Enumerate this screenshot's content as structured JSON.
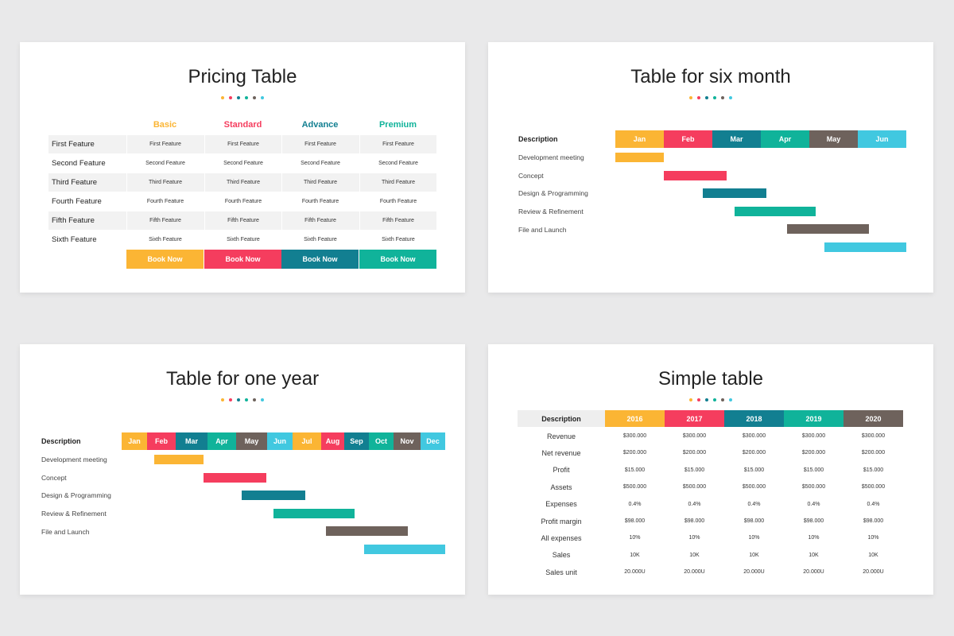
{
  "pricing": {
    "title": "Pricing Table",
    "columns": [
      "Basic",
      "Standard",
      "Advance",
      "Premium"
    ],
    "rows": [
      [
        "First Feature",
        "First Feature",
        "First Feature",
        "First Feature",
        "First Feature"
      ],
      [
        "Second Feature",
        "Second Feature",
        "Second Feature",
        "Second Feature",
        "Second Feature"
      ],
      [
        "Third Feature",
        "Third Feature",
        "Third Feature",
        "Third Feature",
        "Third Feature"
      ],
      [
        "Fourth Feature",
        "Fourth Feature",
        "Fourth Feature",
        "Fourth Feature",
        "Fourth Feature"
      ],
      [
        "Fifth Feature",
        "Fifth Feature",
        "Fifth Feature",
        "Fifth Feature",
        "Fifth Feature"
      ],
      [
        "Sixth Feature",
        "Sixth Feature",
        "Sixth Feature",
        "Sixth Feature",
        "Sixth Feature"
      ]
    ],
    "buttons": [
      "Book Now",
      "Book Now",
      "Book Now",
      "Book Now"
    ]
  },
  "six_month": {
    "title": "Table for six month",
    "header": "Description",
    "months": [
      "Jan",
      "Feb",
      "Mar",
      "Apr",
      "May",
      "Jun"
    ],
    "tasks": [
      "Development meeting",
      "Concept",
      "Design & Programming",
      "Review & Refinement",
      "File and Launch"
    ]
  },
  "one_year": {
    "title": "Table for one year",
    "header": "Description",
    "months": [
      "Jan",
      "Feb",
      "Mar",
      "Apr",
      "May",
      "Jun",
      "Jul",
      "Aug",
      "Sep",
      "Oct",
      "Nov",
      "Dec"
    ],
    "tasks": [
      "Development meeting",
      "Concept",
      "Design & Programming",
      "Review & Refinement",
      "File and Launch"
    ]
  },
  "simple": {
    "title": "Simple table",
    "header": [
      "Description",
      "2016",
      "2017",
      "2018",
      "2019",
      "2020"
    ],
    "rows": [
      [
        "Revenue",
        "$300.000",
        "$300.000",
        "$300.000",
        "$300.000",
        "$300.000"
      ],
      [
        "Net revenue",
        "$200.000",
        "$200.000",
        "$200.000",
        "$200.000",
        "$200.000"
      ],
      [
        "Profit",
        "$15.000",
        "$15.000",
        "$15.000",
        "$15.000",
        "$15.000"
      ],
      [
        "Assets",
        "$500.000",
        "$500.000",
        "$500.000",
        "$500.000",
        "$500.000"
      ],
      [
        "Expenses",
        "0.4%",
        "0.4%",
        "0.4%",
        "0.4%",
        "0.4%"
      ],
      [
        "Profit margin",
        "$98.000",
        "$98.000",
        "$98.000",
        "$98.000",
        "$98.000"
      ],
      [
        "All expenses",
        "10%",
        "10%",
        "10%",
        "10%",
        "10%"
      ],
      [
        "Sales",
        "10K",
        "10K",
        "10K",
        "10K",
        "10K"
      ],
      [
        "Sales unit",
        "20.000U",
        "20.000U",
        "20.000U",
        "20.000U",
        "20.000U"
      ]
    ]
  }
}
